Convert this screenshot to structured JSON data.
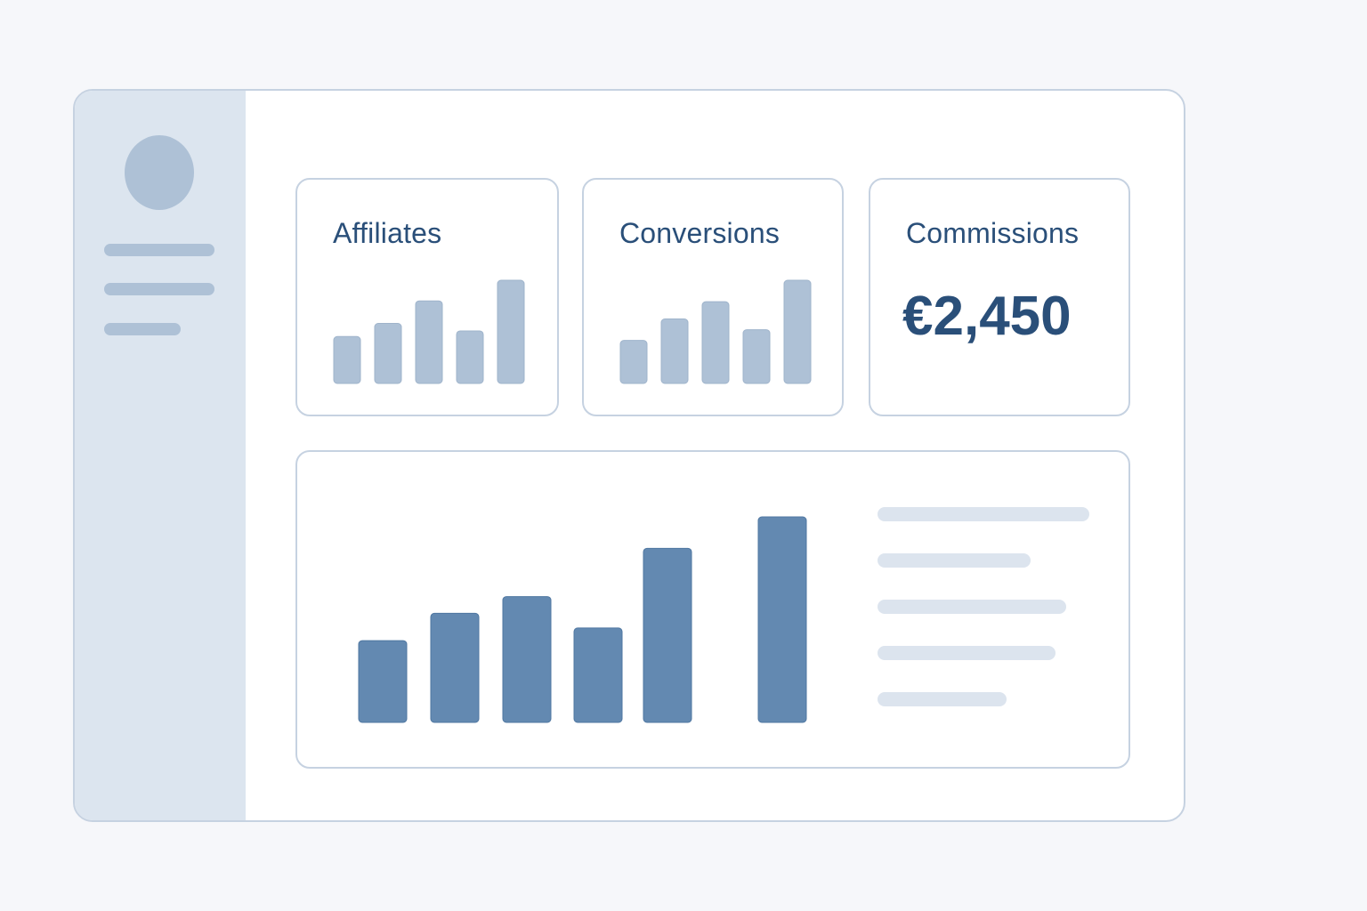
{
  "colors": {
    "sidebar_bg": "#dce5ef",
    "muted_bar": "#aec1d6",
    "primary_bar": "#6389b1",
    "title_text": "#2a4f79",
    "legend_line": "#dce4ee"
  },
  "icons": {
    "avatar": "user-avatar-placeholder"
  },
  "cards": {
    "affiliates": {
      "title": "Affiliates",
      "chart_data": {
        "type": "bar",
        "values": [
          2.5,
          3.2,
          4.4,
          2.8,
          5.5
        ]
      }
    },
    "conversions": {
      "title": "Conversions",
      "chart_data": {
        "type": "bar",
        "values": [
          2.0,
          3.0,
          3.8,
          2.5,
          4.8
        ]
      }
    },
    "commissions": {
      "title": "Commissions",
      "value": "€2,450"
    }
  },
  "chart_data": {
    "type": "bar",
    "values": [
      3.9,
      5.2,
      6.0,
      4.5,
      8.3,
      9.8
    ]
  }
}
